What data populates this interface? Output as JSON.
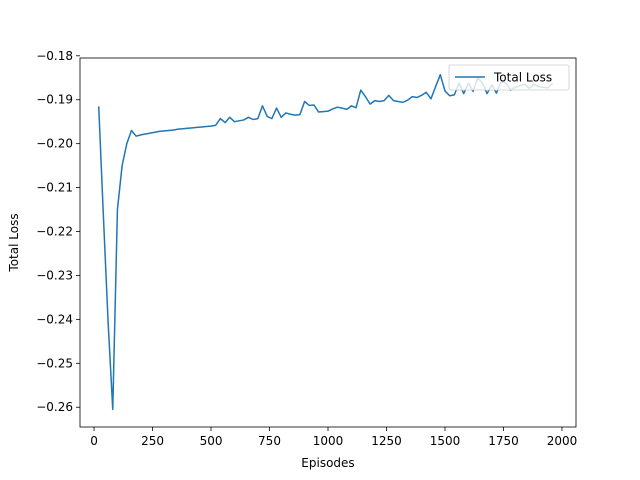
{
  "chart_data": {
    "type": "line",
    "title": "",
    "xlabel": "Episodes",
    "ylabel": "Total Loss",
    "xlim": [
      -60,
      2060
    ],
    "ylim": [
      -0.2645,
      -0.1805
    ],
    "xticks": [
      0,
      250,
      500,
      750,
      1000,
      1250,
      1500,
      1750,
      2000
    ],
    "yticks": [
      -0.26,
      -0.25,
      -0.24,
      -0.23,
      -0.22,
      -0.21,
      -0.2,
      -0.19,
      -0.18
    ],
    "grid": false,
    "legend": {
      "placement": "top-right",
      "entries": [
        "Total Loss"
      ]
    },
    "series": [
      {
        "name": "Total Loss",
        "color": "#1f77b4",
        "x": [
          20,
          40,
          60,
          80,
          100,
          120,
          140,
          160,
          180,
          200,
          220,
          240,
          260,
          280,
          300,
          320,
          340,
          360,
          380,
          400,
          420,
          440,
          460,
          480,
          500,
          520,
          540,
          560,
          580,
          600,
          620,
          640,
          660,
          680,
          700,
          720,
          740,
          760,
          780,
          800,
          820,
          840,
          860,
          880,
          900,
          920,
          940,
          960,
          980,
          1000,
          1020,
          1040,
          1060,
          1080,
          1100,
          1120,
          1140,
          1160,
          1180,
          1200,
          1220,
          1240,
          1260,
          1280,
          1300,
          1320,
          1340,
          1360,
          1380,
          1400,
          1420,
          1440,
          1460,
          1480,
          1500,
          1520,
          1540,
          1560,
          1580,
          1600,
          1620,
          1640,
          1660,
          1680,
          1700,
          1720,
          1740,
          1760,
          1780,
          1800,
          1820,
          1840,
          1860,
          1880,
          1900,
          1920,
          1940,
          1960
        ],
        "y": [
          -0.1915,
          -0.2165,
          -0.2405,
          -0.2605,
          -0.215,
          -0.205,
          -0.2,
          -0.197,
          -0.1983,
          -0.198,
          -0.1978,
          -0.1976,
          -0.1974,
          -0.1972,
          -0.1971,
          -0.197,
          -0.1969,
          -0.1967,
          -0.1966,
          -0.1965,
          -0.1964,
          -0.1963,
          -0.1962,
          -0.1961,
          -0.196,
          -0.1958,
          -0.1943,
          -0.1952,
          -0.194,
          -0.195,
          -0.1948,
          -0.1946,
          -0.194,
          -0.1945,
          -0.1943,
          -0.1914,
          -0.1938,
          -0.1943,
          -0.1919,
          -0.194,
          -0.193,
          -0.1933,
          -0.1935,
          -0.1934,
          -0.1904,
          -0.1913,
          -0.1912,
          -0.1928,
          -0.1927,
          -0.1926,
          -0.1921,
          -0.1917,
          -0.1919,
          -0.1922,
          -0.1914,
          -0.1918,
          -0.1878,
          -0.1893,
          -0.191,
          -0.1902,
          -0.1904,
          -0.1902,
          -0.189,
          -0.1902,
          -0.1904,
          -0.1906,
          -0.1901,
          -0.1893,
          -0.1895,
          -0.189,
          -0.1883,
          -0.1898,
          -0.187,
          -0.1843,
          -0.188,
          -0.1891,
          -0.1889,
          -0.1862,
          -0.1886,
          -0.1862,
          -0.1881,
          -0.185,
          -0.1862,
          -0.1886,
          -0.1866,
          -0.1885,
          -0.1858,
          -0.1862,
          -0.1878,
          -0.1872,
          -0.1868,
          -0.1865,
          -0.1874,
          -0.1865,
          -0.187,
          -0.1872,
          -0.1873,
          -0.1862
        ]
      }
    ]
  }
}
